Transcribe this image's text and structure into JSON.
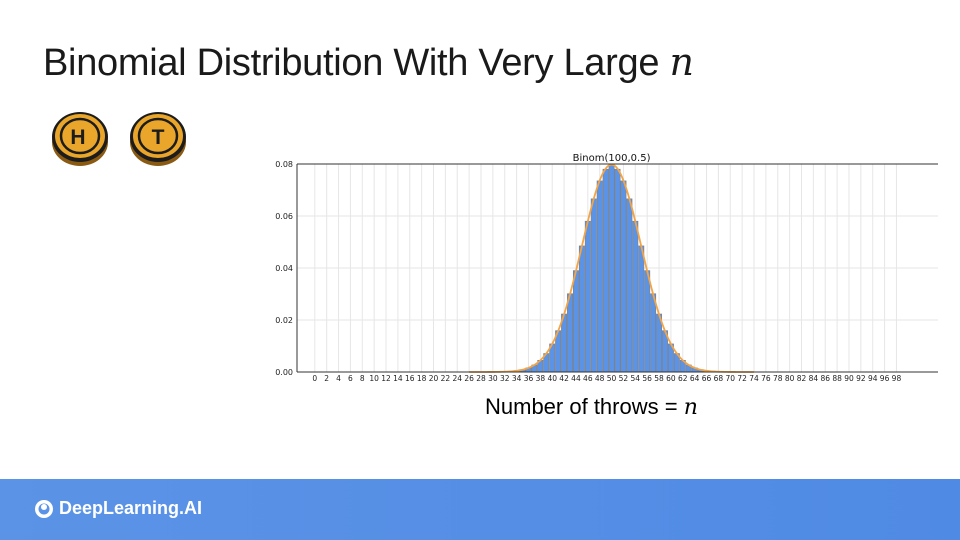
{
  "slide": {
    "title_text": "Binomial Distribution With Very Large",
    "title_var": "n",
    "x_caption_text": "Number of throws",
    "x_caption_eq": "=",
    "x_caption_var": "n"
  },
  "coins": [
    {
      "letter": "H",
      "icon": "heads-coin-icon"
    },
    {
      "letter": "T",
      "icon": "tails-coin-icon"
    }
  ],
  "colors": {
    "bar": "#5b93e6",
    "bar_edge": "#7f7f7f",
    "curve": "#f2a447",
    "grid": "#e6e6e6",
    "footer": "#5b93e6"
  },
  "footer": {
    "brand": "DeepLearning.AI"
  },
  "chart_data": {
    "type": "bar",
    "title": "Binom(100,0.5)",
    "n": 100,
    "p": 0.5,
    "x": [
      0,
      1,
      2,
      3,
      4,
      5,
      6,
      7,
      8,
      9,
      10,
      11,
      12,
      13,
      14,
      15,
      16,
      17,
      18,
      19,
      20,
      21,
      22,
      23,
      24,
      25,
      26,
      27,
      28,
      29,
      30,
      31,
      32,
      33,
      34,
      35,
      36,
      37,
      38,
      39,
      40,
      41,
      42,
      43,
      44,
      45,
      46,
      47,
      48,
      49,
      50,
      51,
      52,
      53,
      54,
      55,
      56,
      57,
      58,
      59,
      60,
      61,
      62,
      63,
      64,
      65,
      66,
      67,
      68,
      69,
      70,
      71,
      72,
      73,
      74,
      75,
      76,
      77,
      78,
      79,
      80,
      81,
      82,
      83,
      84,
      85,
      86,
      87,
      88,
      89,
      90,
      91,
      92,
      93,
      94,
      95,
      96,
      97,
      98,
      99,
      100
    ],
    "values": [
      0,
      0,
      0,
      0,
      0,
      0,
      0,
      0,
      0,
      0,
      0,
      0,
      0,
      0,
      0,
      0,
      0,
      0,
      0,
      0,
      0,
      0,
      0,
      0,
      0,
      0,
      0,
      0,
      0,
      0,
      0.0,
      0.0001,
      0.0002,
      0.0002,
      0.0005,
      0.0009,
      0.0016,
      0.0027,
      0.0045,
      0.0071,
      0.0108,
      0.0159,
      0.0223,
      0.0301,
      0.039,
      0.0485,
      0.058,
      0.0666,
      0.0735,
      0.078,
      0.0796,
      0.078,
      0.0735,
      0.0666,
      0.058,
      0.0485,
      0.039,
      0.0301,
      0.0223,
      0.0159,
      0.0108,
      0.0071,
      0.0045,
      0.0027,
      0.0016,
      0.0009,
      0.0005,
      0.0002,
      0.0002,
      0.0001,
      0.0,
      0,
      0,
      0,
      0,
      0,
      0,
      0,
      0,
      0,
      0,
      0,
      0,
      0,
      0,
      0,
      0,
      0,
      0,
      0,
      0,
      0,
      0,
      0,
      0,
      0,
      0,
      0,
      0,
      0,
      0
    ],
    "x_ticks": [
      0,
      2,
      4,
      6,
      8,
      10,
      12,
      14,
      16,
      18,
      20,
      22,
      24,
      26,
      28,
      30,
      32,
      34,
      36,
      38,
      40,
      42,
      44,
      46,
      48,
      50,
      52,
      54,
      56,
      58,
      60,
      62,
      64,
      66,
      68,
      70,
      72,
      74,
      76,
      78,
      80,
      82,
      84,
      86,
      88,
      90,
      92,
      94,
      96,
      98
    ],
    "y_ticks": [
      "0.00",
      "0.02",
      "0.04",
      "0.06",
      "0.08"
    ],
    "ylim": [
      0,
      0.08
    ],
    "xlim": [
      -3,
      105
    ],
    "grid": true,
    "curve": "normal approximation"
  }
}
